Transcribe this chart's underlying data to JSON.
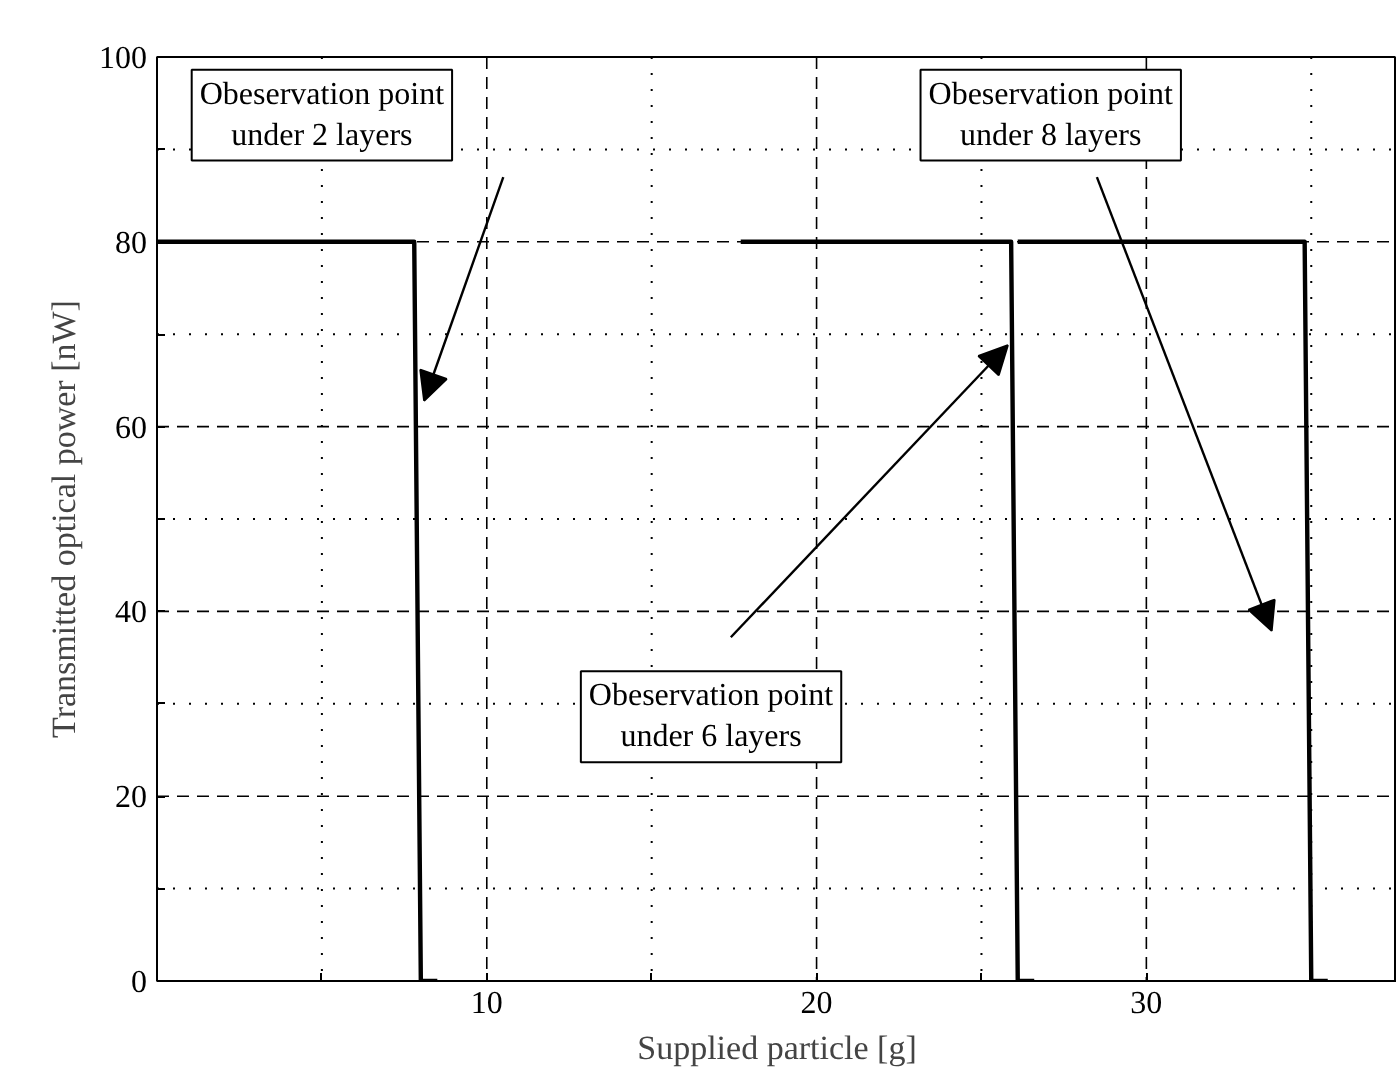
{
  "chart_data": {
    "type": "line",
    "xlabel": "Supplied particle [g]",
    "ylabel": "Transmitted optical power [nW]",
    "series": [
      {
        "color": "#000000",
        "x": [
          0,
          7.8,
          8.0,
          8.5
        ],
        "values": [
          80,
          80,
          0,
          0
        ]
      },
      {
        "color": "#000000",
        "x": [
          17.7,
          25.9,
          26.1,
          26.6
        ],
        "values": [
          80,
          80,
          0,
          0
        ]
      },
      {
        "color": "#000000",
        "x": [
          26.1,
          34.8,
          35.0,
          35.5
        ],
        "values": [
          80,
          80,
          0,
          0
        ]
      }
    ],
    "xlim": [
      0,
      37.6
    ],
    "ylim": [
      0,
      100
    ],
    "xticks": [
      {
        "value": 5,
        "label": null
      },
      10,
      {
        "value": 15,
        "label": null
      },
      20,
      {
        "value": 25,
        "label": null
      },
      30,
      {
        "value": 35,
        "label": null
      }
    ],
    "yticks": [
      0,
      {
        "value": 10,
        "label": null
      },
      20,
      {
        "value": 30,
        "label": null
      },
      40,
      {
        "value": 50,
        "label": null
      },
      60,
      {
        "value": 70,
        "label": null
      },
      80,
      {
        "value": 90,
        "label": null
      },
      100
    ],
    "grid": true,
    "marker": "none",
    "line_style": "solid",
    "annotations": [
      "Obeservation point\nunder 2 layers",
      "Obeservation point\nunder 6 layers",
      "Obeservation point\nunder 8 layers"
    ]
  }
}
